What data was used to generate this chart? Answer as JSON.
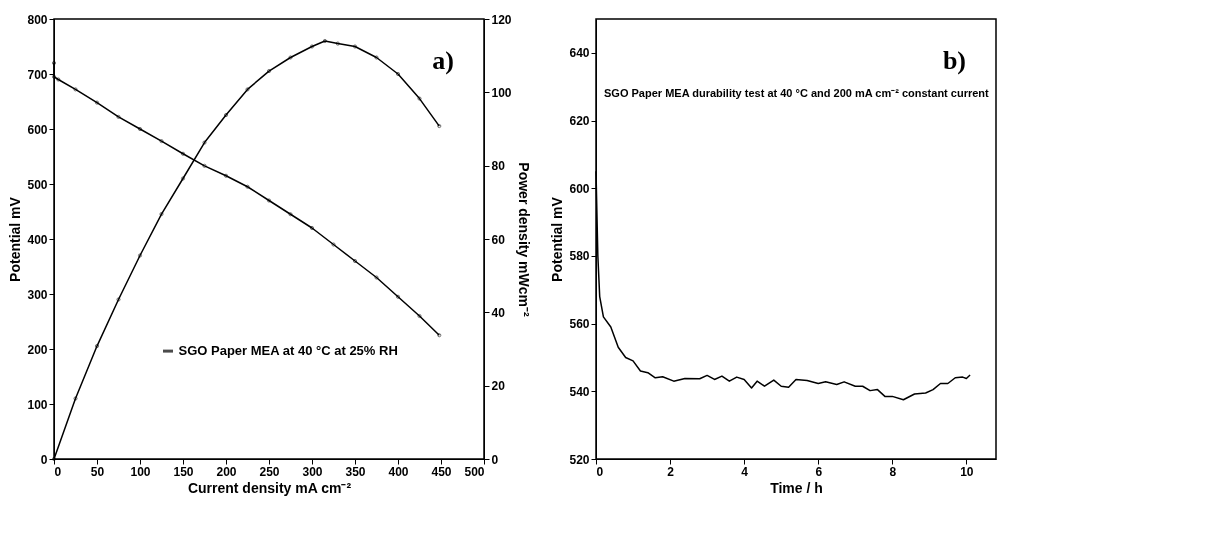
{
  "chart_data": [
    {
      "type": "line",
      "xlabel": "Current density mA cm⁻²",
      "ylabel": "Potential mV",
      "y2label": "Power density mWcm⁻²",
      "annotations": [
        "a)"
      ],
      "xlim": [
        0,
        500
      ],
      "xticks": [
        0,
        50,
        100,
        150,
        200,
        250,
        300,
        350,
        400,
        450,
        500
      ],
      "ylim": [
        0,
        800
      ],
      "yticks": [
        0,
        100,
        200,
        300,
        400,
        500,
        600,
        700,
        800
      ],
      "y2lim": [
        0,
        120
      ],
      "y2ticks": [
        0,
        20,
        40,
        60,
        80,
        100,
        120
      ],
      "marker": "circle",
      "legend": "bottom",
      "grid": false,
      "series": [
        {
          "name": "SGO Paper MEA at 40 °C at 25% RH",
          "color": "#000000",
          "x": [
            0,
            0,
            5,
            25,
            50,
            75,
            100,
            125,
            150,
            175,
            200,
            225,
            250,
            275,
            300,
            325,
            350,
            375,
            400,
            425,
            448
          ],
          "values": [
            720,
            695,
            690,
            672,
            648,
            622,
            600,
            578,
            555,
            533,
            515,
            495,
            470,
            445,
            420,
            390,
            360,
            330,
            295,
            260,
            225
          ]
        },
        {
          "color": "#000000",
          "axis": "y2",
          "x": [
            0,
            25,
            50,
            75,
            100,
            125,
            150,
            175,
            200,
            225,
            250,
            275,
            300,
            315,
            330,
            350,
            375,
            400,
            425,
            448
          ],
          "values": [
            0,
            16.5,
            30.8,
            43.5,
            55.5,
            66.8,
            76.5,
            86.3,
            93.8,
            100.8,
            105.8,
            109.5,
            112.5,
            114,
            113.3,
            112.5,
            109.5,
            105,
            98.3,
            90.8
          ]
        }
      ]
    },
    {
      "type": "line",
      "xlabel": "Time / h",
      "ylabel": "Potential mV",
      "annotations": [
        "b)",
        "SGO Paper MEA durability test at 40 °C and 200 mA cm⁻² constant current"
      ],
      "xlim": [
        0,
        10.8
      ],
      "xticks": [
        0,
        2,
        4,
        6,
        8,
        10
      ],
      "ylim": [
        520,
        650
      ],
      "yticks": [
        520,
        540,
        560,
        580,
        600,
        620,
        640
      ],
      "grid": false,
      "series": [
        {
          "color": "#000000",
          "x": [
            0,
            0.05,
            0.1,
            0.2,
            0.4,
            0.6,
            0.8,
            1.0,
            1.2,
            1.4,
            1.6,
            1.8,
            2.1,
            2.4,
            2.8,
            3.0,
            3.2,
            3.4,
            3.6,
            3.8,
            4.0,
            4.2,
            4.35,
            4.55,
            4.8,
            5.0,
            5.2,
            5.4,
            5.7,
            6.0,
            6.2,
            6.5,
            6.7,
            7.0,
            7.2,
            7.4,
            7.6,
            7.8,
            8.0,
            8.3,
            8.6,
            8.9,
            9.1,
            9.3,
            9.5,
            9.7,
            9.9,
            10.0,
            10.1
          ],
          "values": [
            605,
            580,
            568,
            562,
            559,
            553,
            550,
            549,
            546,
            545.5,
            544,
            544.3,
            543,
            543.8,
            543.7,
            544.7,
            543.5,
            544.5,
            543,
            544.2,
            543.5,
            541,
            543,
            541.5,
            543.3,
            541.5,
            541.2,
            543.5,
            543.2,
            542.3,
            542.8,
            542,
            542.8,
            541.5,
            541.5,
            540.2,
            540.5,
            538.5,
            538.5,
            537.5,
            539.2,
            539.5,
            540.5,
            542.3,
            542.3,
            544,
            544.2,
            543.8,
            544.8
          ]
        }
      ]
    }
  ]
}
